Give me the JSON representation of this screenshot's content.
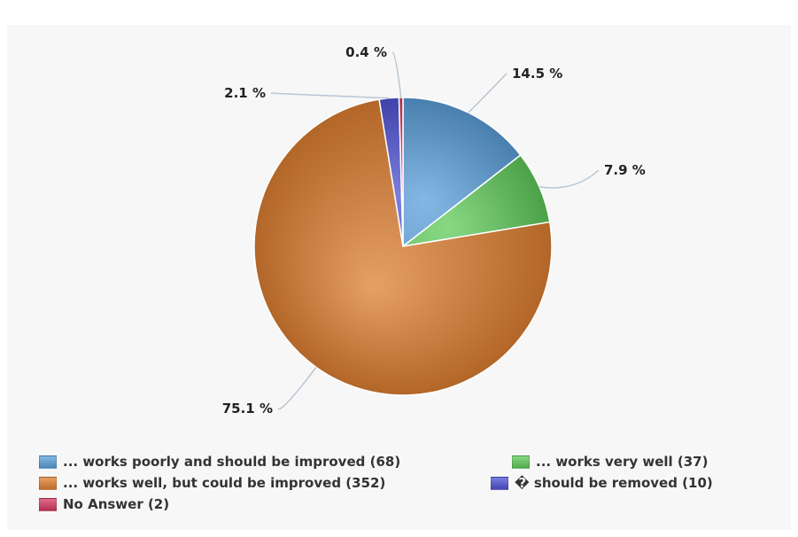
{
  "chart_data": {
    "type": "pie",
    "title": "",
    "slices": [
      {
        "label": "... works poorly and should be improved",
        "count": 68,
        "percent": 14.5,
        "percent_label": "14.5 %",
        "legend_label": "... works poorly and should be improved (68)",
        "color": "#5b9fd9"
      },
      {
        "label": "... works very well",
        "count": 37,
        "percent": 7.9,
        "percent_label": "7.9 %",
        "legend_label": "... works very well (37)",
        "color": "#5fc95a"
      },
      {
        "label": "... works well, but could be improved",
        "count": 352,
        "percent": 75.1,
        "percent_label": "75.1 %",
        "legend_label": "... works well, but could be improved (352)",
        "color": "#df7f32"
      },
      {
        "label": "� should be removed",
        "count": 10,
        "percent": 2.1,
        "percent_label": "2.1 %",
        "legend_label": "� should be removed (10)",
        "color": "#4f52d3"
      },
      {
        "label": "No Answer",
        "count": 2,
        "percent": 0.4,
        "percent_label": "0.4 %",
        "legend_label": "No Answer (2)",
        "color": "#d43a60"
      }
    ],
    "start_angle_deg": 0,
    "legend_placement": "bottom"
  }
}
